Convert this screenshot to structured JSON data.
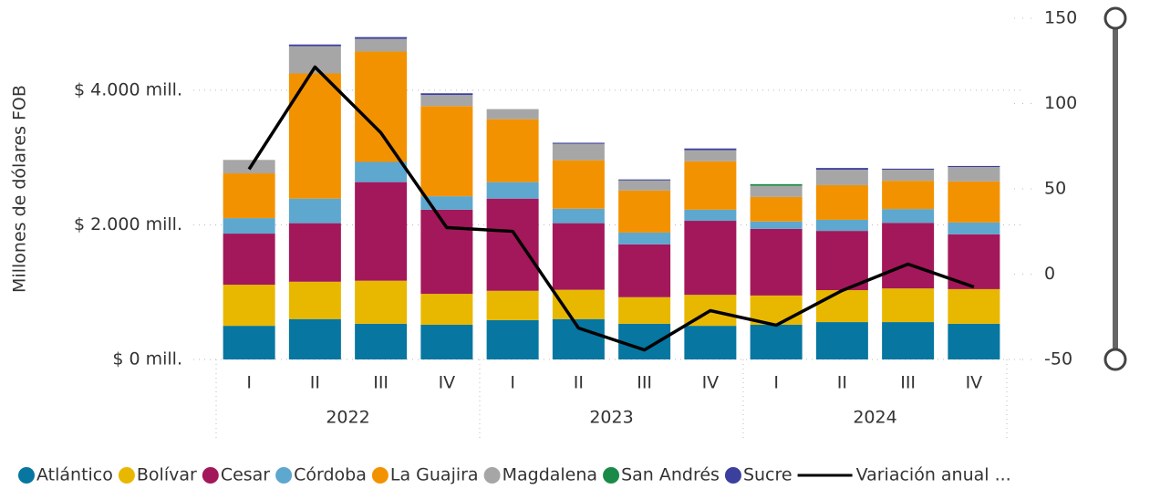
{
  "chart_data": {
    "type": "bar",
    "stacked": true,
    "y_label": "Millones de dólares FOB",
    "categories": [
      "I",
      "II",
      "III",
      "IV",
      "I",
      "II",
      "III",
      "IV",
      "I",
      "II",
      "III",
      "IV"
    ],
    "year_labels": [
      "2022",
      "2023",
      "2024"
    ],
    "ylim": [
      0,
      5070
    ],
    "yticks": [
      {
        "value": 0,
        "label": "$ 0 mill."
      },
      {
        "value": 2000,
        "label": "$ 2.000 mill."
      },
      {
        "value": 4000,
        "label": "$ 4.000 mill."
      }
    ],
    "y2lim": [
      -50,
      150
    ],
    "y2ticks": [
      -50,
      0,
      50,
      100,
      150
    ],
    "grid": true,
    "legend": "bottom",
    "series": [
      {
        "name": "Atlántico",
        "color": "#0776a0",
        "values": [
          500,
          600,
          530,
          515,
          585,
          600,
          530,
          500,
          515,
          555,
          555,
          530
        ]
      },
      {
        "name": "Bolívar",
        "color": "#e8b800",
        "values": [
          610,
          555,
          640,
          460,
          435,
          435,
          395,
          460,
          435,
          475,
          500,
          515
        ]
      },
      {
        "name": "Cesar",
        "color": "#a3185a",
        "values": [
          760,
          870,
          1465,
          1250,
          1370,
          990,
          785,
          1100,
          990,
          880,
          975,
          815
        ]
      },
      {
        "name": "Córdoba",
        "color": "#5ea7cf",
        "values": [
          230,
          365,
          300,
          200,
          245,
          215,
          175,
          165,
          110,
          165,
          205,
          175
        ]
      },
      {
        "name": "La Guajira",
        "color": "#f39200",
        "values": [
          665,
          1860,
          1640,
          1340,
          935,
          720,
          625,
          720,
          365,
          515,
          420,
          610
        ]
      },
      {
        "name": "Magdalena",
        "color": "#a6a6a6",
        "values": [
          200,
          405,
          190,
          165,
          150,
          245,
          150,
          165,
          165,
          230,
          165,
          215
        ]
      },
      {
        "name": "San Andrés",
        "color": "#1a8a49",
        "values": [
          0,
          0,
          0,
          0,
          0,
          0,
          0,
          0,
          25,
          0,
          0,
          0
        ]
      },
      {
        "name": "Sucre",
        "color": "#3b3f9e",
        "values": [
          0,
          25,
          25,
          25,
          0,
          15,
          15,
          25,
          0,
          25,
          15,
          15
        ]
      },
      {
        "name": "Variación anual ...",
        "color": "#000000",
        "type": "line",
        "axis": "y2",
        "values": [
          61.5,
          121.4,
          82.9,
          27.3,
          25.1,
          -31.6,
          -44.4,
          -21.4,
          -29.9,
          -9.6,
          5.9,
          -7.5
        ]
      }
    ]
  }
}
